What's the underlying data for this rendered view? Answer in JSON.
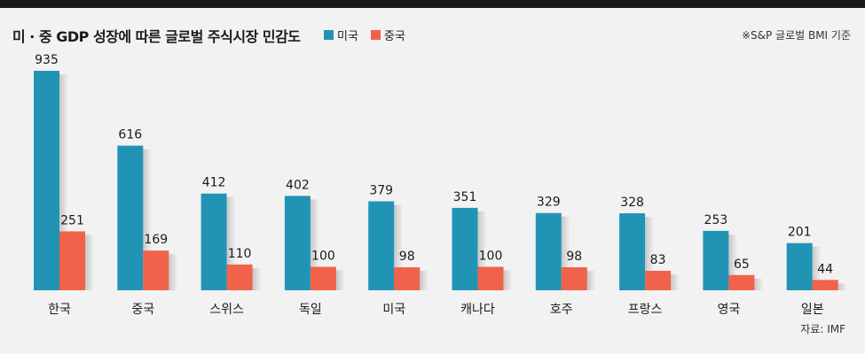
{
  "header": {
    "title": "미 · 중 GDP 성장에 따른 글로벌 주식시장 민감도",
    "note": "※S&P 글로벌 BMI 기준",
    "source": "자료: IMF"
  },
  "colors": {
    "us": "#2194b6",
    "china": "#f0634a",
    "background": "#f2f2f2",
    "topbar": "#1a1a1a"
  },
  "chart_data": {
    "type": "bar",
    "title": "미 · 중 GDP 성장에 따른 글로벌 주식시장 민감도",
    "categories": [
      "한국",
      "중국",
      "스위스",
      "독일",
      "미국",
      "캐나다",
      "호주",
      "프랑스",
      "영국",
      "일본"
    ],
    "series": [
      {
        "name": "미국",
        "values": [
          935,
          616,
          412,
          402,
          379,
          351,
          329,
          328,
          253,
          201
        ]
      },
      {
        "name": "중국",
        "values": [
          251,
          169,
          110,
          100,
          98,
          100,
          98,
          83,
          65,
          44
        ]
      }
    ],
    "xlabel": "",
    "ylabel": "",
    "ylim": [
      0,
      935
    ],
    "legend_position": "top",
    "grid": false
  }
}
